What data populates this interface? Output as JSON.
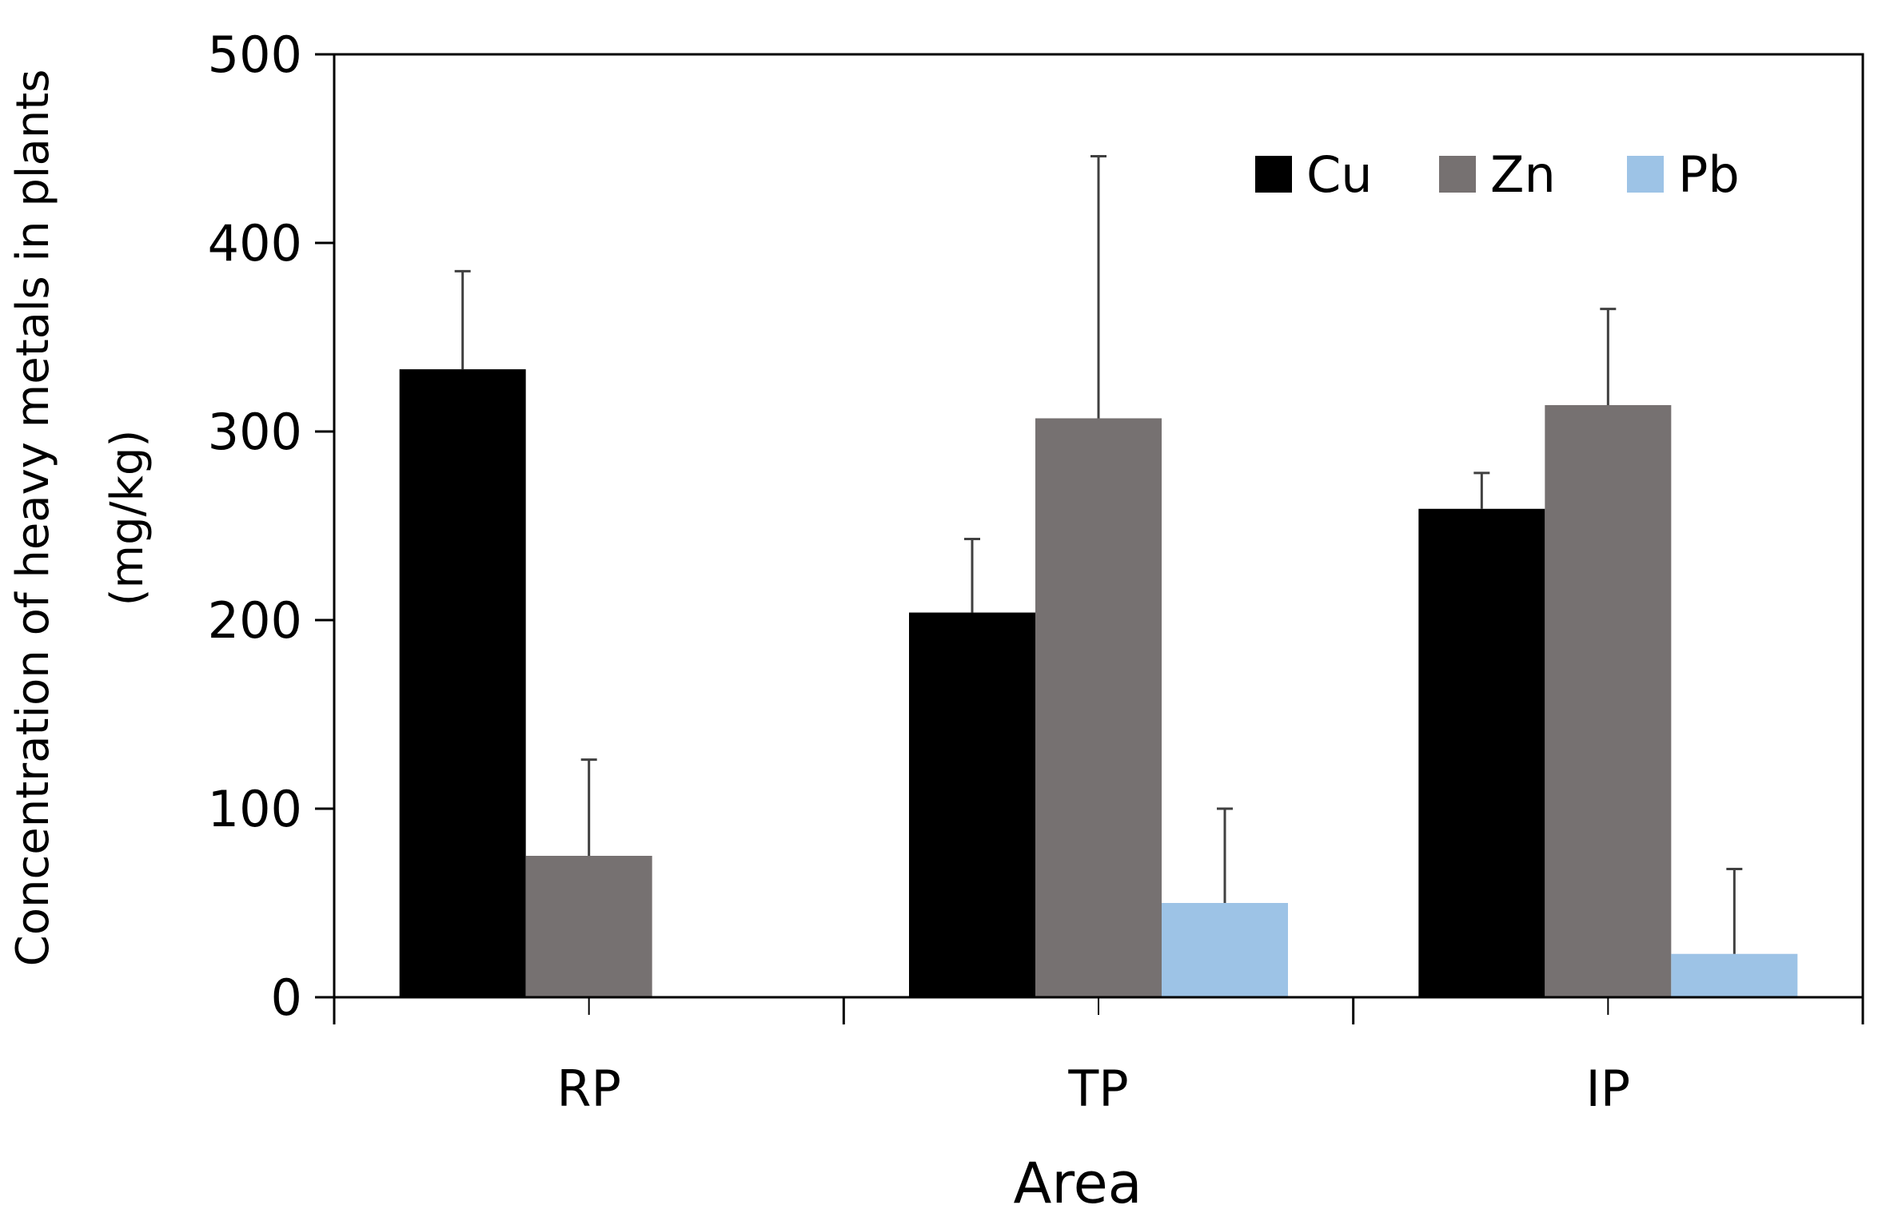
{
  "chart_data": {
    "type": "bar",
    "title": "",
    "xlabel": "Area",
    "ylabel_line1": "Concentration of heavy metals in plants",
    "ylabel_line2": "(mg/kg)",
    "categories": [
      "RP",
      "TP",
      "IP"
    ],
    "ylim": [
      0,
      500
    ],
    "yticks": [
      0,
      100,
      200,
      300,
      400,
      500
    ],
    "ytick_labels": [
      "0",
      "100",
      "200",
      "300",
      "400",
      "500"
    ],
    "legend_position": "top-right",
    "grid": false,
    "series": [
      {
        "name": "Cu",
        "color": "#000000",
        "values": [
          333,
          204,
          259
        ],
        "errors": [
          52,
          39,
          19
        ]
      },
      {
        "name": "Zn",
        "color": "#767171",
        "values": [
          75,
          307,
          314
        ],
        "errors": [
          51,
          139,
          51
        ]
      },
      {
        "name": "Pb",
        "color": "#9DC3E6",
        "values": [
          0,
          50,
          23
        ],
        "errors": [
          0,
          50,
          45
        ]
      }
    ]
  }
}
